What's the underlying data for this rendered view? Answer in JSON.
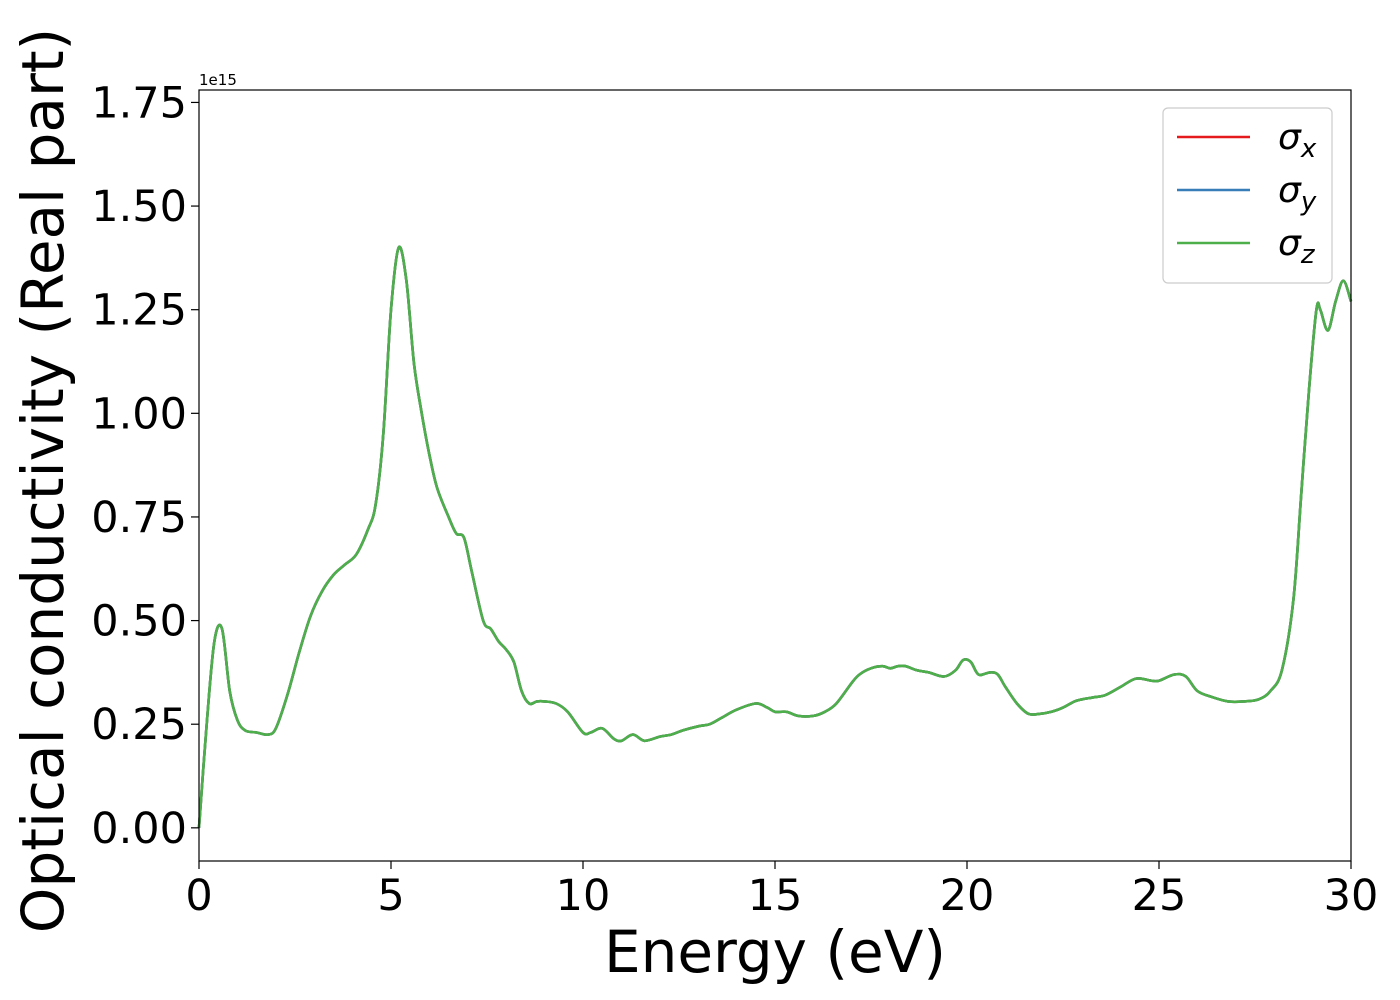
{
  "chart_data": {
    "type": "line",
    "xlabel": "Energy (eV)",
    "ylabel": "Optical conductivity (Real part)",
    "y_offset_label": "1e15",
    "xlim": [
      0,
      30
    ],
    "ylim": [
      -0.08,
      1.78
    ],
    "x_ticks": [
      0,
      5,
      10,
      15,
      20,
      25,
      30
    ],
    "x_tick_labels": [
      "0",
      "5",
      "10",
      "15",
      "20",
      "25",
      "30"
    ],
    "y_ticks": [
      0.0,
      0.25,
      0.5,
      0.75,
      1.0,
      1.25,
      1.5,
      1.75
    ],
    "y_tick_labels": [
      "0.00",
      "0.25",
      "0.50",
      "0.75",
      "1.00",
      "1.25",
      "1.50",
      "1.75"
    ],
    "grid": false,
    "legend_position": "top-right",
    "x": [
      0,
      0.2,
      0.4,
      0.6,
      0.8,
      1.0,
      1.2,
      1.5,
      1.8,
      2.0,
      2.3,
      2.6,
      2.9,
      3.2,
      3.5,
      3.8,
      4.1,
      4.4,
      4.6,
      4.8,
      5.0,
      5.2,
      5.4,
      5.6,
      5.8,
      6.0,
      6.2,
      6.5,
      6.7,
      6.9,
      7.1,
      7.4,
      7.6,
      7.8,
      8.0,
      8.2,
      8.4,
      8.6,
      8.8,
      9.0,
      9.3,
      9.6,
      10.0,
      10.2,
      10.5,
      10.8,
      11.0,
      11.3,
      11.6,
      12.0,
      12.3,
      12.6,
      13.0,
      13.3,
      13.6,
      14.0,
      14.5,
      14.8,
      15.0,
      15.3,
      15.6,
      16.0,
      16.3,
      16.6,
      17.0,
      17.2,
      17.5,
      17.8,
      18.0,
      18.2,
      18.4,
      18.7,
      19.0,
      19.4,
      19.7,
      19.9,
      20.1,
      20.3,
      20.6,
      20.8,
      21.0,
      21.3,
      21.6,
      21.9,
      22.2,
      22.5,
      22.8,
      23.0,
      23.3,
      23.6,
      24.0,
      24.4,
      24.8,
      25.0,
      25.4,
      25.7,
      26.0,
      26.4,
      26.8,
      27.2,
      27.6,
      27.9,
      28.2,
      28.5,
      28.7,
      28.9,
      29.1,
      29.2,
      29.4,
      29.6,
      29.8,
      30.0
    ],
    "series": [
      {
        "name": "σx",
        "color": "#e41a1c",
        "values": [
          0.0,
          0.25,
          0.45,
          0.48,
          0.33,
          0.26,
          0.235,
          0.23,
          0.225,
          0.24,
          0.32,
          0.42,
          0.51,
          0.57,
          0.61,
          0.635,
          0.66,
          0.72,
          0.78,
          0.95,
          1.25,
          1.4,
          1.32,
          1.12,
          1.0,
          0.9,
          0.82,
          0.75,
          0.71,
          0.7,
          0.62,
          0.5,
          0.48,
          0.45,
          0.43,
          0.4,
          0.33,
          0.3,
          0.305,
          0.305,
          0.3,
          0.28,
          0.23,
          0.23,
          0.24,
          0.215,
          0.21,
          0.225,
          0.21,
          0.22,
          0.225,
          0.235,
          0.245,
          0.25,
          0.265,
          0.285,
          0.3,
          0.29,
          0.28,
          0.28,
          0.27,
          0.27,
          0.28,
          0.3,
          0.35,
          0.37,
          0.385,
          0.39,
          0.385,
          0.39,
          0.39,
          0.38,
          0.375,
          0.365,
          0.38,
          0.405,
          0.4,
          0.37,
          0.375,
          0.37,
          0.34,
          0.3,
          0.275,
          0.275,
          0.28,
          0.29,
          0.305,
          0.31,
          0.315,
          0.32,
          0.34,
          0.36,
          0.355,
          0.355,
          0.37,
          0.365,
          0.33,
          0.315,
          0.305,
          0.305,
          0.31,
          0.33,
          0.38,
          0.55,
          0.8,
          1.05,
          1.25,
          1.25,
          1.2,
          1.27,
          1.32,
          1.27
        ]
      },
      {
        "name": "σy",
        "color": "#377eb8",
        "values": [
          0.0,
          0.25,
          0.45,
          0.48,
          0.33,
          0.26,
          0.235,
          0.23,
          0.225,
          0.24,
          0.32,
          0.42,
          0.51,
          0.57,
          0.61,
          0.635,
          0.66,
          0.72,
          0.78,
          0.95,
          1.25,
          1.4,
          1.32,
          1.12,
          1.0,
          0.9,
          0.82,
          0.75,
          0.71,
          0.7,
          0.62,
          0.5,
          0.48,
          0.45,
          0.43,
          0.4,
          0.33,
          0.3,
          0.305,
          0.305,
          0.3,
          0.28,
          0.23,
          0.23,
          0.24,
          0.215,
          0.21,
          0.225,
          0.21,
          0.22,
          0.225,
          0.235,
          0.245,
          0.25,
          0.265,
          0.285,
          0.3,
          0.29,
          0.28,
          0.28,
          0.27,
          0.27,
          0.28,
          0.3,
          0.35,
          0.37,
          0.385,
          0.39,
          0.385,
          0.39,
          0.39,
          0.38,
          0.375,
          0.365,
          0.38,
          0.405,
          0.4,
          0.37,
          0.375,
          0.37,
          0.34,
          0.3,
          0.275,
          0.275,
          0.28,
          0.29,
          0.305,
          0.31,
          0.315,
          0.32,
          0.34,
          0.36,
          0.355,
          0.355,
          0.37,
          0.365,
          0.33,
          0.315,
          0.305,
          0.305,
          0.31,
          0.33,
          0.38,
          0.55,
          0.8,
          1.05,
          1.25,
          1.25,
          1.2,
          1.27,
          1.32,
          1.27
        ]
      },
      {
        "name": "σz",
        "color": "#4daf4a",
        "values": [
          0.0,
          0.25,
          0.45,
          0.48,
          0.33,
          0.26,
          0.235,
          0.23,
          0.225,
          0.24,
          0.32,
          0.42,
          0.51,
          0.57,
          0.61,
          0.635,
          0.66,
          0.72,
          0.78,
          0.95,
          1.25,
          1.4,
          1.32,
          1.12,
          1.0,
          0.9,
          0.82,
          0.75,
          0.71,
          0.7,
          0.62,
          0.5,
          0.48,
          0.45,
          0.43,
          0.4,
          0.33,
          0.3,
          0.305,
          0.305,
          0.3,
          0.28,
          0.23,
          0.23,
          0.24,
          0.215,
          0.21,
          0.225,
          0.21,
          0.22,
          0.225,
          0.235,
          0.245,
          0.25,
          0.265,
          0.285,
          0.3,
          0.29,
          0.28,
          0.28,
          0.27,
          0.27,
          0.28,
          0.3,
          0.35,
          0.37,
          0.385,
          0.39,
          0.385,
          0.39,
          0.39,
          0.38,
          0.375,
          0.365,
          0.38,
          0.405,
          0.4,
          0.37,
          0.375,
          0.37,
          0.34,
          0.3,
          0.275,
          0.275,
          0.28,
          0.29,
          0.305,
          0.31,
          0.315,
          0.32,
          0.34,
          0.36,
          0.355,
          0.355,
          0.37,
          0.365,
          0.33,
          0.315,
          0.305,
          0.305,
          0.31,
          0.33,
          0.38,
          0.55,
          0.8,
          1.05,
          1.25,
          1.25,
          1.2,
          1.27,
          1.32,
          1.27
        ]
      }
    ],
    "legend": [
      {
        "symbol": "σ",
        "sub": "x",
        "color": "#e41a1c"
      },
      {
        "symbol": "σ",
        "sub": "y",
        "color": "#377eb8"
      },
      {
        "symbol": "σ",
        "sub": "z",
        "color": "#4daf4a"
      }
    ]
  }
}
